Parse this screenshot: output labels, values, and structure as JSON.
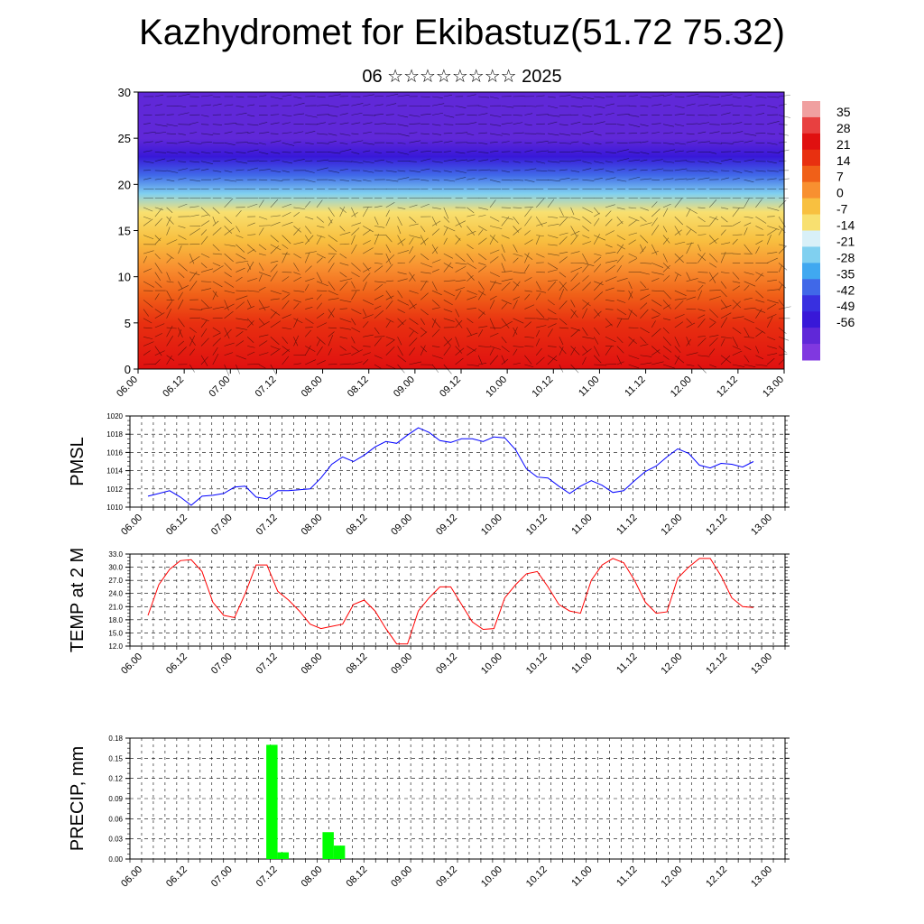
{
  "title": "Kazhydromet for Ekibastuz(51.72 75.32)",
  "subtitle": "06 ☆☆☆☆☆☆☆☆ 2025",
  "x_ticks": [
    "06.00",
    "06.12",
    "07.00",
    "07.12",
    "08.00",
    "08.12",
    "09.00",
    "09.12",
    "10.00",
    "10.12",
    "11.00",
    "11.12",
    "12.00",
    "12.12",
    "13.00"
  ],
  "colorbar": {
    "labels": [
      "35",
      "28",
      "21",
      "14",
      "7",
      "0",
      "-7",
      "-14",
      "-21",
      "-28",
      "-35",
      "-42",
      "-49",
      "-56"
    ],
    "colors": [
      "#f0a0a0",
      "#e84040",
      "#e01010",
      "#e83010",
      "#f06018",
      "#f89030",
      "#f8c040",
      "#f8e070",
      "#d8f0f8",
      "#80d0f0",
      "#40a8f0",
      "#4068e8",
      "#3830e0",
      "#3818d8",
      "#6028d8",
      "#8038e0"
    ]
  },
  "chart_data": [
    {
      "type": "heatmap",
      "title": "",
      "ylabel": "",
      "ylim": [
        0,
        30
      ],
      "yticks": [
        0,
        5,
        10,
        15,
        20,
        25,
        30
      ],
      "x_ticks": [
        "06.00",
        "06.12",
        "07.00",
        "07.12",
        "08.00",
        "08.12",
        "09.00",
        "09.12",
        "10.00",
        "10.12",
        "11.00",
        "11.12",
        "12.00",
        "12.12",
        "13.00"
      ],
      "legend": "colorbar right",
      "levels_top_to_bottom": [
        {
          "level": 30,
          "temp": -56
        },
        {
          "level": 27,
          "temp": -56
        },
        {
          "level": 25,
          "temp": -56
        },
        {
          "level": 23,
          "temp": -49
        },
        {
          "level": 21,
          "temp": -35
        },
        {
          "level": 19,
          "temp": -21
        },
        {
          "level": 17,
          "temp": -7
        },
        {
          "level": 14,
          "temp": 0
        },
        {
          "level": 11,
          "temp": 7
        },
        {
          "level": 8,
          "temp": 14
        },
        {
          "level": 5,
          "temp": 21
        },
        {
          "level": 0,
          "temp": 28
        }
      ]
    },
    {
      "type": "line",
      "ylabel": "PMSL",
      "ylim": [
        1010,
        1020
      ],
      "yticks": [
        "1010",
        "1012",
        "1014",
        "1016",
        "1018",
        "1020"
      ],
      "grid": true,
      "series": [
        {
          "color": "#0000ff",
          "values": [
            1011.2,
            1011.5,
            1011.8,
            1011.1,
            1010.2,
            1011.2,
            1011.3,
            1011.5,
            1012.2,
            1012.3,
            1011.1,
            1010.9,
            1011.8,
            1011.8,
            1011.9,
            1012.0,
            1013.2,
            1014.7,
            1015.5,
            1015.0,
            1015.7,
            1016.6,
            1017.2,
            1017.0,
            1017.9,
            1018.7,
            1018.2,
            1017.3,
            1017.1,
            1017.5,
            1017.5,
            1017.2,
            1017.7,
            1017.6,
            1016.3,
            1014.2,
            1013.3,
            1013.2,
            1012.3,
            1011.5,
            1012.3,
            1012.9,
            1012.4,
            1011.6,
            1011.8,
            1012.9,
            1013.9,
            1014.5,
            1015.5,
            1016.4,
            1015.9,
            1014.6,
            1014.3,
            1014.8,
            1014.7,
            1014.4,
            1015.0
          ]
        }
      ]
    },
    {
      "type": "line",
      "ylabel": "TEMP at 2 M",
      "ylim": [
        12,
        33
      ],
      "yticks": [
        "12.0",
        "15.0",
        "18.0",
        "21.0",
        "24.0",
        "27.0",
        "30.0",
        "33.0"
      ],
      "grid": true,
      "series": [
        {
          "color": "#ff0000",
          "values": [
            19.0,
            26.0,
            29.5,
            31.5,
            31.7,
            29.0,
            22.0,
            19.0,
            18.5,
            24.0,
            30.5,
            30.5,
            24.5,
            22.5,
            20.0,
            17.0,
            16.0,
            16.5,
            17.0,
            21.5,
            22.5,
            20.0,
            16.0,
            12.5,
            12.5,
            20.0,
            23.0,
            25.5,
            25.5,
            21.5,
            17.5,
            15.8,
            16.0,
            23.0,
            26.0,
            28.5,
            29.0,
            25.5,
            21.5,
            20.0,
            19.5,
            27.0,
            30.5,
            32.0,
            31.0,
            27.0,
            22.0,
            19.5,
            19.8,
            27.5,
            30.0,
            32.0,
            32.0,
            28.0,
            23.0,
            21.0,
            20.8
          ]
        }
      ]
    },
    {
      "type": "bar",
      "ylabel": "PRECIP, mm",
      "ylim": [
        0,
        0.18
      ],
      "yticks": [
        "0.00",
        "0.03",
        "0.06",
        "0.09",
        "0.12",
        "0.15",
        "0.18"
      ],
      "grid": true,
      "color": "#00ff00",
      "bars": [
        {
          "x": "07.09",
          "value": 0.17
        },
        {
          "x": "07.12",
          "value": 0.01
        },
        {
          "x": "08.00",
          "value": 0.04
        },
        {
          "x": "08.03",
          "value": 0.02
        }
      ]
    }
  ]
}
